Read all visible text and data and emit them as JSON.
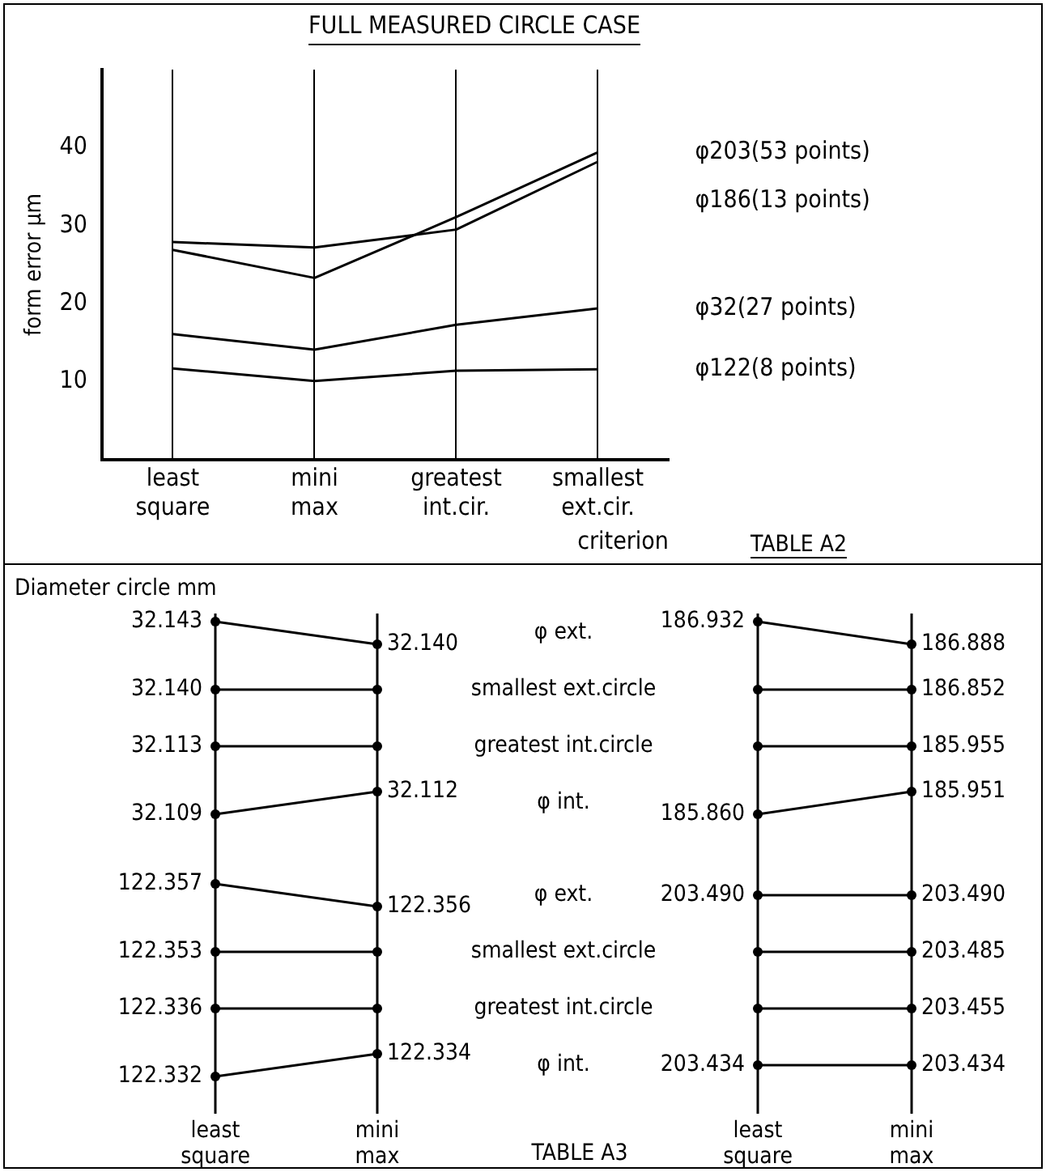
{
  "chart_data": [
    {
      "type": "line",
      "title": "FULL MEASURED CIRCLE CASE",
      "xlabel": "criterion",
      "ylabel": "form error μm",
      "categories": [
        "least square",
        "mini max",
        "greatest int.cir.",
        "smallest ext.cir."
      ],
      "series": [
        {
          "name": "φ203(53 points)",
          "color": "#000000",
          "values": [
            26.9,
            23.3,
            31.1,
            39.4
          ]
        },
        {
          "name": "φ186(13 points)",
          "color": "#000000",
          "values": [
            27.9,
            27.2,
            29.5,
            38.2
          ]
        },
        {
          "name": "φ32(27 points)",
          "color": "#000000",
          "values": [
            16.1,
            14.1,
            17.3,
            19.4
          ]
        },
        {
          "name": "φ122(8 points)",
          "color": "#000000",
          "values": [
            11.7,
            10.1,
            11.4,
            11.6
          ]
        }
      ],
      "ylim": [
        0,
        50
      ],
      "yticks": [
        10,
        20,
        30,
        40
      ],
      "grid": "x",
      "legend": false,
      "marker": "none",
      "line_style": "solid",
      "annotations": [
        "TABLE A2"
      ]
    },
    {
      "type": "other",
      "ylabel": "Diameter circle mm",
      "categories": [
        "least square",
        "mini max",
        "least square",
        "mini max"
      ],
      "series": [
        {
          "name": "φ ext.",
          "color": "#000000",
          "values": [
            32.143,
            32.14,
            186.932,
            186.888
          ],
          "value_labels": [
            "32.143",
            "32.140",
            "186.932",
            "186.888"
          ]
        },
        {
          "name": "smallest ext.circle",
          "color": "#000000",
          "values": [
            32.14,
            null,
            null,
            186.852
          ],
          "value_labels": [
            "32.140",
            null,
            null,
            "186.852"
          ]
        },
        {
          "name": "greatest int.circle",
          "color": "#000000",
          "values": [
            32.113,
            null,
            null,
            185.955
          ],
          "value_labels": [
            "32.113",
            null,
            null,
            "185.955"
          ]
        },
        {
          "name": "φ int.",
          "color": "#000000",
          "values": [
            32.109,
            32.112,
            185.86,
            185.951
          ],
          "value_labels": [
            "32.109",
            "32.112",
            "185.860",
            "185.951"
          ]
        },
        {
          "name": "φ ext.",
          "color": "#000000",
          "values": [
            122.357,
            122.356,
            203.49,
            203.49
          ],
          "value_labels": [
            "122.357",
            "122.356",
            "203.490",
            "203.490"
          ]
        },
        {
          "name": "smallest ext.circle",
          "color": "#000000",
          "values": [
            122.353,
            null,
            null,
            203.485
          ],
          "value_labels": [
            "122.353",
            null,
            null,
            "203.485"
          ]
        },
        {
          "name": "greatest int.circle",
          "color": "#000000",
          "values": [
            122.336,
            null,
            null,
            203.455
          ],
          "value_labels": [
            "122.336",
            null,
            null,
            "203.455"
          ]
        },
        {
          "name": "φ int.",
          "color": "#000000",
          "values": [
            122.332,
            122.334,
            203.434,
            203.434
          ],
          "value_labels": [
            "122.332",
            "122.334",
            "203.434",
            "203.434"
          ]
        }
      ],
      "annotations": [
        "TABLE A3"
      ]
    }
  ]
}
